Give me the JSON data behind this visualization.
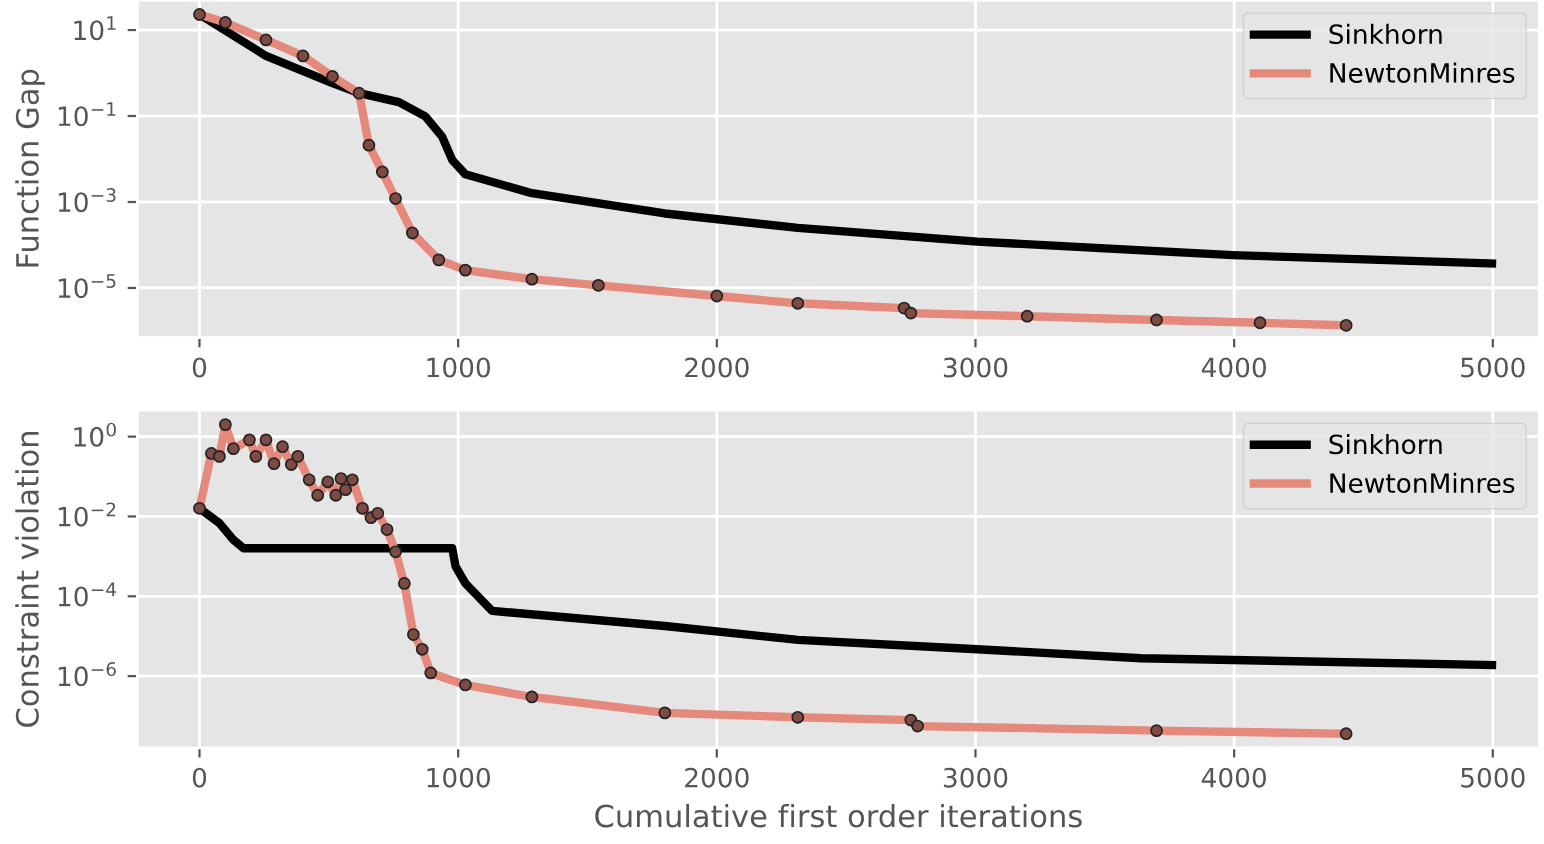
{
  "chart_data": [
    {
      "type": "line",
      "ylabel": "Function Gap",
      "log": "y",
      "grid": true,
      "legend": "top right",
      "xlim": [
        -240,
        5180
      ],
      "xticks": [
        0,
        1000,
        2000,
        3000,
        4000,
        5000
      ],
      "ylim": [
        7e-07,
        50
      ],
      "yticks": [
        {
          "value": 10,
          "label": "10$^{1}$"
        },
        {
          "value": 0.1,
          "label": "10$^{−1}$"
        },
        {
          "value": 0.001,
          "label": "10$^{−3}$"
        },
        {
          "value": 1e-05,
          "label": "10$^{−5}$"
        }
      ],
      "series": [
        {
          "name": "Sinkhorn",
          "color": "#000000",
          "marker": "none",
          "x": [
            0,
            257,
            514,
            617,
            771,
            873,
            938,
            977,
            1028,
            1285,
            1799,
            2313,
            3007,
            3994,
            4997
          ],
          "values": [
            23,
            2.5,
            0.58,
            0.34,
            0.21,
            0.098,
            0.033,
            0.0095,
            0.0044,
            0.0016,
            0.00054,
            0.00025,
            0.00012,
            5.8e-05,
            3.7e-05
          ]
        },
        {
          "name": "NewtonMinres",
          "color": "#e5897c",
          "marker": "circle",
          "x": [
            0,
            100,
            257,
            400,
            514,
            617,
            655,
            707,
            758,
            823,
            925,
            1028,
            1285,
            1542,
            2000,
            2313,
            2724,
            2750,
            3200,
            3700,
            4100,
            4433
          ],
          "values": [
            23,
            15,
            5.9,
            2.5,
            0.83,
            0.34,
            0.021,
            0.005,
            0.0012,
            0.00019,
            4.5e-05,
            2.6e-05,
            1.6e-05,
            1.15e-05,
            6.5e-06,
            4.4e-06,
            3.4e-06,
            2.6e-06,
            2.2e-06,
            1.8e-06,
            1.55e-06,
            1.35e-06
          ]
        }
      ]
    },
    {
      "type": "line",
      "ylabel": "Constraint violation",
      "xlabel": "Cumulative first order iterations",
      "log": "y",
      "grid": true,
      "legend": "top right",
      "xlim": [
        -240,
        5180
      ],
      "xticks": [
        0,
        1000,
        2000,
        3000,
        4000,
        5000
      ],
      "ylim": [
        1.6e-08,
        4.6
      ],
      "yticks": [
        {
          "value": 1,
          "label": "10$^{0}$"
        },
        {
          "value": 0.01,
          "label": "10$^{−2}$"
        },
        {
          "value": 0.0001,
          "label": "10$^{−4}$"
        },
        {
          "value": 1e-06,
          "label": "10$^{−6}$"
        }
      ],
      "series": [
        {
          "name": "Sinkhorn",
          "color": "#000000",
          "marker": "none",
          "x": [
            0,
            77,
            131,
            170,
            977,
            990,
            1028,
            1131,
            1799,
            2313,
            3007,
            3640,
            4997
          ],
          "values": [
            0.016,
            0.0068,
            0.0026,
            0.0016,
            0.0016,
            0.00056,
            0.00021,
            4.3e-05,
            1.8e-05,
            8.1e-06,
            4.7e-06,
            2.8e-06,
            1.9e-06
          ]
        },
        {
          "name": "NewtonMinres",
          "color": "#e5897c",
          "marker": "circle",
          "x": [
            0,
            46,
            77,
            100,
            131,
            193,
            218,
            257,
            288,
            321,
            355,
            380,
            424,
            457,
            496,
            527,
            547,
            565,
            591,
            630,
            663,
            689,
            725,
            758,
            792,
            827,
            861,
            894,
            1028,
            1285,
            1799,
            2313,
            2750,
            2776,
            3700,
            4433
          ],
          "values": [
            0.016,
            0.38,
            0.32,
            2.0,
            0.5,
            0.83,
            0.32,
            0.83,
            0.21,
            0.56,
            0.2,
            0.32,
            0.083,
            0.034,
            0.074,
            0.034,
            0.089,
            0.047,
            0.083,
            0.016,
            0.0093,
            0.012,
            0.0047,
            0.0013,
            0.00021,
            1.1e-05,
            4.7e-06,
            1.2e-06,
            6e-07,
            3e-07,
            1.2e-07,
            9.3e-08,
            7.9e-08,
            5.6e-08,
            4.3e-08,
            3.6e-08
          ]
        }
      ]
    }
  ]
}
